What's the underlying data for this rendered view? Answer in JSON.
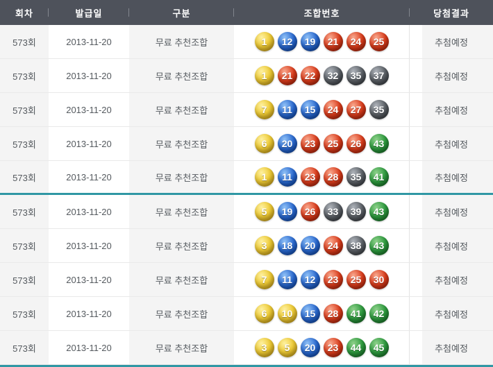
{
  "header": {
    "columns": [
      "회차",
      "발급일",
      "구분",
      "조합번호",
      "당첨결과"
    ]
  },
  "colors": {
    "header_bg": "#4e525b",
    "accent_teal": "#2f97a4",
    "stripe_bg": "#f4f4f4",
    "ball_yellow": "#e9bb1f",
    "ball_blue": "#1c5cc4",
    "ball_red": "#d8391c",
    "ball_gray": "#51565d",
    "ball_green": "#2c9a41"
  },
  "ball_color_rule": {
    "yellow": "1-10",
    "blue": "11-20",
    "red": "21-30",
    "gray": "31-40",
    "green": "41-45"
  },
  "rows": [
    {
      "round": "573회",
      "issue_date": "2013-11-20",
      "category": "무료 추천조합",
      "numbers": [
        1,
        12,
        19,
        21,
        24,
        25
      ],
      "result": "추첨예정"
    },
    {
      "round": "573회",
      "issue_date": "2013-11-20",
      "category": "무료 추천조합",
      "numbers": [
        1,
        21,
        22,
        32,
        35,
        37
      ],
      "result": "추첨예정"
    },
    {
      "round": "573회",
      "issue_date": "2013-11-20",
      "category": "무료 추천조합",
      "numbers": [
        7,
        11,
        15,
        24,
        27,
        35
      ],
      "result": "추첨예정"
    },
    {
      "round": "573회",
      "issue_date": "2013-11-20",
      "category": "무료 추천조합",
      "numbers": [
        6,
        20,
        23,
        25,
        26,
        43
      ],
      "result": "추첨예정"
    },
    {
      "round": "573회",
      "issue_date": "2013-11-20",
      "category": "무료 추천조합",
      "numbers": [
        1,
        11,
        23,
        28,
        35,
        41
      ],
      "result": "추첨예정"
    },
    {
      "round": "573회",
      "issue_date": "2013-11-20",
      "category": "무료 추천조합",
      "numbers": [
        5,
        19,
        26,
        33,
        39,
        43
      ],
      "result": "추첨예정"
    },
    {
      "round": "573회",
      "issue_date": "2013-11-20",
      "category": "무료 추천조합",
      "numbers": [
        3,
        18,
        20,
        24,
        38,
        43
      ],
      "result": "추첨예정"
    },
    {
      "round": "573회",
      "issue_date": "2013-11-20",
      "category": "무료 추천조합",
      "numbers": [
        7,
        11,
        12,
        23,
        25,
        30
      ],
      "result": "추첨예정"
    },
    {
      "round": "573회",
      "issue_date": "2013-11-20",
      "category": "무료 추천조합",
      "numbers": [
        6,
        10,
        15,
        28,
        41,
        42
      ],
      "result": "추첨예정"
    },
    {
      "round": "573회",
      "issue_date": "2013-11-20",
      "category": "무료 추천조합",
      "numbers": [
        3,
        5,
        20,
        23,
        44,
        45
      ],
      "result": "추첨예정"
    }
  ]
}
